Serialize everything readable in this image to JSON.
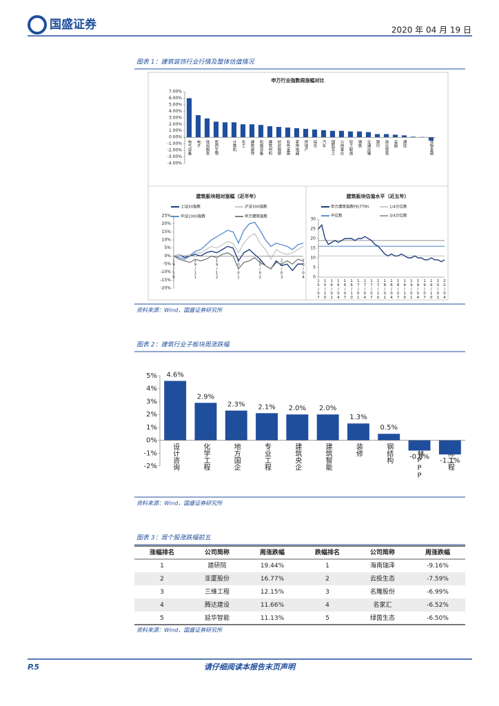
{
  "header": {
    "logo": "国盛证券",
    "date": "2020 年 04 月 19 日"
  },
  "captions": [
    "图表 1：建筑装饰行业行情及整体估值情况",
    "图表 2：建筑行业子板块周涨跌幅",
    "图表 3：周个股涨跌幅前五"
  ],
  "sources": [
    "资料来源：Wind，国盛证券研究所",
    "资料来源：Wind，国盛证券研究所",
    "资料来源：Wind，国盛证券研究所"
  ],
  "chart_data": [
    {
      "type": "bar",
      "title": "申万行业指数周涨幅对比",
      "color": "#1f4e9c",
      "categories": [
        "电气设备",
        "电子",
        "休闲服务",
        "医药生物",
        null,
        "计算机",
        "化工",
        "建筑装饰",
        "机械设备",
        "建筑材料",
        "纺织服装",
        "有色金属",
        "家用电器",
        "房地产",
        "综合",
        "汽车",
        "国防军工",
        "公用事业",
        "轻工制造",
        "钢铁",
        "交通运输",
        "银行",
        "商业贸易",
        "采掘",
        "通信",
        null,
        null,
        "非银金融"
      ],
      "values": [
        6.0,
        3.4,
        2.9,
        2.4,
        2.3,
        2.3,
        2.0,
        2.0,
        1.9,
        1.7,
        1.6,
        1.5,
        1.4,
        1.3,
        1.2,
        1.1,
        1.0,
        1.0,
        0.9,
        0.9,
        0.8,
        0.5,
        0.5,
        0.4,
        0.3,
        0.1,
        0.05,
        -0.5
      ],
      "ylim": [
        -4,
        7
      ],
      "yticks": [
        {
          "value": 7,
          "label": "7.00%"
        },
        {
          "value": 6,
          "label": "6.00%"
        },
        {
          "value": 5,
          "label": "5.00%"
        },
        {
          "value": 4,
          "label": "4.00%"
        },
        {
          "value": 3,
          "label": "3.00%"
        },
        {
          "value": 2,
          "label": "2.00%"
        },
        {
          "value": 1,
          "label": "1.00%"
        },
        {
          "value": 0,
          "label": "0.00%"
        },
        {
          "value": -1,
          "label": "-1.00%"
        },
        {
          "value": -2,
          "label": "-2.00%"
        },
        {
          "value": -3,
          "label": "-3.00%"
        },
        {
          "value": -4,
          "label": "-4.00%"
        }
      ]
    },
    {
      "type": "line",
      "title": "建筑板块相对涨幅（近半年）",
      "categories": [
        "19/10",
        null,
        null,
        null,
        "19/11",
        null,
        null,
        null,
        "19/12",
        null,
        null,
        null,
        "20/01",
        null,
        null,
        null,
        "20/02",
        null,
        null,
        null,
        "20/03",
        null,
        null,
        null,
        "20/04"
      ],
      "series": [
        {
          "name": "上证50指数",
          "color": "#1f3d7a",
          "values": [
            0,
            1,
            -1,
            0,
            1,
            0,
            2,
            3,
            2,
            4,
            6,
            5,
            -3,
            2,
            4,
            1,
            -2,
            -6,
            -8,
            -3,
            -6,
            -5,
            -9,
            -5,
            -5
          ]
        },
        {
          "name": "沪深300指数",
          "color": "#c8c8c8",
          "values": [
            0,
            1,
            0,
            1,
            2,
            2,
            4,
            6,
            5,
            7,
            9,
            8,
            2,
            8,
            12,
            14,
            8,
            4,
            -2,
            4,
            2,
            1,
            2,
            4,
            6
          ]
        },
        {
          "name": "中证1000指数",
          "color": "#5b8fd0",
          "values": [
            0,
            -1,
            -2,
            0,
            3,
            4,
            7,
            10,
            12,
            14,
            16,
            15,
            8,
            16,
            20,
            21,
            16,
            10,
            6,
            8,
            7,
            6,
            4,
            7,
            8
          ]
        },
        {
          "name": "申万建筑指数",
          "color": "#808080",
          "values": [
            0,
            -2,
            -3,
            -4,
            -2,
            -3,
            -2,
            0,
            -1,
            1,
            2,
            0,
            -8,
            -4,
            -3,
            -1,
            -4,
            -6,
            -8,
            -4,
            -5,
            -3,
            -5,
            -2,
            -3
          ]
        }
      ],
      "ylim": [
        -20,
        25
      ],
      "yticks": [
        {
          "value": 25,
          "label": "25%"
        },
        {
          "value": 20,
          "label": "20%"
        },
        {
          "value": 15,
          "label": "15%"
        },
        {
          "value": 10,
          "label": "10%"
        },
        {
          "value": 5,
          "label": "5%"
        },
        {
          "value": 0,
          "label": "0%"
        },
        {
          "value": -5,
          "label": "-5%"
        },
        {
          "value": -10,
          "label": "-10%"
        },
        {
          "value": -15,
          "label": "-15%"
        },
        {
          "value": -20,
          "label": "-20%"
        }
      ]
    },
    {
      "type": "line",
      "title": "建筑板块估值水平（近五年）",
      "categories": [
        "15/07",
        null,
        "15/10",
        null,
        "16/01",
        null,
        "16/04",
        null,
        "16/07",
        null,
        "16/10",
        null,
        "17/01",
        null,
        "17/04",
        null,
        "17/07",
        null,
        "17/10",
        null,
        "18/01",
        null,
        "18/04",
        null,
        "18/07",
        null,
        "18/10",
        null,
        "19/01",
        null,
        "19/04",
        null,
        "19/07",
        null,
        "19/10",
        null,
        "20/01",
        null,
        "20/04"
      ],
      "series": [
        {
          "name": "申万建筑指数PE(TTM)",
          "color": "#1f3d7a",
          "values": [
            25,
            27,
            20,
            17,
            18,
            19,
            18,
            19,
            20,
            20,
            20,
            19,
            20,
            20,
            21,
            20,
            19,
            17,
            16,
            14,
            12,
            11,
            12,
            11,
            11,
            12,
            11,
            10,
            10,
            11,
            10,
            10,
            9,
            9,
            10,
            9,
            9,
            8,
            9
          ]
        }
      ],
      "reference_lines": [
        {
          "name": "1/4分位数",
          "color": "#c8c8c8",
          "value": 11
        },
        {
          "name": "中位数",
          "color": "#5b8fd0",
          "value": 16
        },
        {
          "name": "3/4分位数",
          "color": "#a0a0a0",
          "value": 19
        }
      ],
      "ylim": [
        0,
        30
      ],
      "yticks": [
        0,
        5,
        10,
        15,
        20,
        25,
        30
      ]
    },
    {
      "type": "bar",
      "color": "#1f4e9c",
      "categories": [
        "设计咨询",
        "化学工程",
        "地方国企",
        "专业工程",
        "建筑央企",
        "建筑智能",
        "装修",
        "钢结构",
        "园林PPP",
        "国际工程"
      ],
      "values": [
        4.6,
        2.9,
        2.3,
        2.1,
        2.0,
        2.0,
        1.3,
        0.5,
        -0.8,
        -1.1
      ],
      "value_labels": [
        "4.6%",
        "2.9%",
        "2.3%",
        "2.1%",
        "2.0%",
        "2.0%",
        "1.3%",
        "0.5%",
        "-0.8%",
        "-1.1%"
      ],
      "ylim": [
        -2,
        5
      ],
      "yticks": [
        {
          "value": 5,
          "label": "5%"
        },
        {
          "value": 4,
          "label": "4%"
        },
        {
          "value": 3,
          "label": "3%"
        },
        {
          "value": 2,
          "label": "2%"
        },
        {
          "value": 1,
          "label": "1%"
        },
        {
          "value": 0,
          "label": "0%"
        },
        {
          "value": -1,
          "label": "-1%"
        },
        {
          "value": -2,
          "label": "-2%"
        }
      ]
    }
  ],
  "table": {
    "columns": [
      "涨幅排名",
      "公司简称",
      "周涨跌幅",
      "跌幅排名",
      "公司简称",
      "周涨跌幅"
    ],
    "rows": [
      [
        "1",
        "建研院",
        "19.44%",
        "1",
        "海南瑞泽",
        "-9.16%"
      ],
      [
        "2",
        "亚厦股份",
        "16.77%",
        "2",
        "云投生态",
        "-7.59%"
      ],
      [
        "3",
        "三维工程",
        "12.15%",
        "3",
        "名雕股份",
        "-6.99%"
      ],
      [
        "4",
        "腾达建设",
        "11.66%",
        "4",
        "名家汇",
        "-6.52%"
      ],
      [
        "5",
        "延华智能",
        "11.13%",
        "5",
        "绿茵生态",
        "-6.50%"
      ]
    ]
  },
  "footer": {
    "page": "P.5",
    "notice": "请仔细阅读本报告末页声明"
  }
}
